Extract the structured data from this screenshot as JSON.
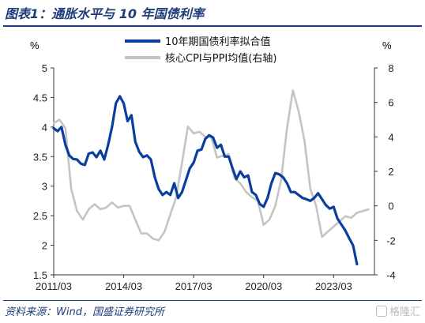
{
  "title": "图表1：通胀水平与 10 年国债利率",
  "source": "资料来源：Wind，国盛证券研究所",
  "watermark": "格隆汇",
  "colors": {
    "primary": "#0a3e9e",
    "secondary": "#c4c4c4",
    "title": "#1f3c7a"
  },
  "chart_data": {
    "type": "line",
    "y_left": {
      "label": "%",
      "range": [
        1.5,
        5
      ],
      "ticks": [
        "1.5",
        "2",
        "2.5",
        "3",
        "3.5",
        "4",
        "4.5",
        "5"
      ]
    },
    "y_right": {
      "label": "%",
      "range": [
        -4,
        8
      ],
      "ticks": [
        "-4",
        "-2",
        "0",
        "2",
        "4",
        "6",
        "8"
      ]
    },
    "x_ticks": [
      "2011/03",
      "2014/03",
      "2017/03",
      "2020/03",
      "2023/03"
    ],
    "legend_position": "top-center",
    "series": [
      {
        "name": "10年期国债利率拟合值",
        "axis": "left",
        "color": "#0a3e9e",
        "points": [
          [
            "2011-03",
            3.98
          ],
          [
            "2011-05",
            3.93
          ],
          [
            "2011-07",
            4.0
          ],
          [
            "2011-09",
            3.7
          ],
          [
            "2011-11",
            3.52
          ],
          [
            "2012-01",
            3.46
          ],
          [
            "2012-03",
            3.45
          ],
          [
            "2012-05",
            3.38
          ],
          [
            "2012-07",
            3.36
          ],
          [
            "2012-09",
            3.55
          ],
          [
            "2012-11",
            3.57
          ],
          [
            "2013-01",
            3.49
          ],
          [
            "2013-03",
            3.6
          ],
          [
            "2013-05",
            3.45
          ],
          [
            "2013-07",
            3.7
          ],
          [
            "2013-09",
            4.0
          ],
          [
            "2013-11",
            4.4
          ],
          [
            "2014-01",
            4.52
          ],
          [
            "2014-03",
            4.4
          ],
          [
            "2014-05",
            4.1
          ],
          [
            "2014-07",
            4.2
          ],
          [
            "2014-09",
            3.75
          ],
          [
            "2014-11",
            3.58
          ],
          [
            "2015-01",
            3.49
          ],
          [
            "2015-03",
            3.52
          ],
          [
            "2015-05",
            3.45
          ],
          [
            "2015-07",
            3.15
          ],
          [
            "2015-09",
            2.95
          ],
          [
            "2015-11",
            2.85
          ],
          [
            "2016-01",
            2.9
          ],
          [
            "2016-03",
            2.85
          ],
          [
            "2016-05",
            3.05
          ],
          [
            "2016-07",
            2.8
          ],
          [
            "2016-09",
            2.9
          ],
          [
            "2016-11",
            3.1
          ],
          [
            "2017-01",
            3.3
          ],
          [
            "2017-03",
            3.4
          ],
          [
            "2017-05",
            3.6
          ],
          [
            "2017-07",
            3.62
          ],
          [
            "2017-09",
            3.8
          ],
          [
            "2017-11",
            3.86
          ],
          [
            "2018-01",
            3.82
          ],
          [
            "2018-03",
            3.65
          ],
          [
            "2018-05",
            3.7
          ],
          [
            "2018-07",
            3.5
          ],
          [
            "2018-09",
            3.5
          ],
          [
            "2018-11",
            3.3
          ],
          [
            "2019-01",
            3.12
          ],
          [
            "2019-03",
            3.25
          ],
          [
            "2019-05",
            3.15
          ],
          [
            "2019-07",
            3.18
          ],
          [
            "2019-09",
            2.9
          ],
          [
            "2019-11",
            2.85
          ],
          [
            "2020-01",
            2.7
          ],
          [
            "2020-03",
            2.65
          ],
          [
            "2020-05",
            2.8
          ],
          [
            "2020-07",
            3.05
          ],
          [
            "2020-09",
            3.22
          ],
          [
            "2020-11",
            3.2
          ],
          [
            "2021-01",
            3.15
          ],
          [
            "2021-03",
            3.05
          ],
          [
            "2021-05",
            2.9
          ],
          [
            "2021-07",
            2.9
          ],
          [
            "2021-09",
            2.85
          ],
          [
            "2021-11",
            2.8
          ],
          [
            "2022-01",
            2.78
          ],
          [
            "2022-03",
            2.75
          ],
          [
            "2022-05",
            2.8
          ],
          [
            "2022-07",
            2.88
          ],
          [
            "2022-09",
            2.78
          ],
          [
            "2022-11",
            2.68
          ],
          [
            "2023-01",
            2.62
          ],
          [
            "2023-03",
            2.65
          ],
          [
            "2023-05",
            2.45
          ],
          [
            "2023-07",
            2.35
          ],
          [
            "2023-09",
            2.25
          ],
          [
            "2023-11",
            2.12
          ],
          [
            "2024-01",
            2.0
          ],
          [
            "2024-03",
            1.68
          ]
        ]
      },
      {
        "name": "核心CPI与PPI均值(右轴)",
        "axis": "right",
        "color": "#c4c4c4",
        "points": [
          [
            "2011-03",
            4.8
          ],
          [
            "2011-06",
            5.0
          ],
          [
            "2011-09",
            4.5
          ],
          [
            "2011-12",
            1.0
          ],
          [
            "2012-03",
            -0.3
          ],
          [
            "2012-06",
            -0.8
          ],
          [
            "2012-09",
            -0.2
          ],
          [
            "2012-12",
            0.1
          ],
          [
            "2013-03",
            -0.2
          ],
          [
            "2013-06",
            -0.1
          ],
          [
            "2013-09",
            0.2
          ],
          [
            "2013-12",
            -0.1
          ],
          [
            "2014-03",
            0.0
          ],
          [
            "2014-06",
            0.0
          ],
          [
            "2014-09",
            -0.8
          ],
          [
            "2014-12",
            -1.6
          ],
          [
            "2015-03",
            -1.6
          ],
          [
            "2015-06",
            -1.9
          ],
          [
            "2015-09",
            -2.0
          ],
          [
            "2015-12",
            -1.5
          ],
          [
            "2016-03",
            -0.5
          ],
          [
            "2016-06",
            0.5
          ],
          [
            "2016-09",
            2.5
          ],
          [
            "2016-12",
            4.6
          ],
          [
            "2017-03",
            4.2
          ],
          [
            "2017-06",
            4.3
          ],
          [
            "2017-09",
            4.0
          ],
          [
            "2017-12",
            4.0
          ],
          [
            "2018-03",
            2.8
          ],
          [
            "2018-06",
            2.9
          ],
          [
            "2018-09",
            3.0
          ],
          [
            "2018-12",
            1.6
          ],
          [
            "2019-03",
            1.3
          ],
          [
            "2019-06",
            0.8
          ],
          [
            "2019-09",
            0.5
          ],
          [
            "2019-12",
            0.3
          ],
          [
            "2020-03",
            -1.1
          ],
          [
            "2020-06",
            -0.8
          ],
          [
            "2020-09",
            0.0
          ],
          [
            "2020-12",
            1.5
          ],
          [
            "2021-03",
            4.5
          ],
          [
            "2021-06",
            6.7
          ],
          [
            "2021-09",
            5.5
          ],
          [
            "2021-12",
            3.8
          ],
          [
            "2022-03",
            1.0
          ],
          [
            "2022-06",
            0.0
          ],
          [
            "2022-09",
            -1.8
          ],
          [
            "2022-12",
            -1.5
          ],
          [
            "2023-03",
            -1.2
          ],
          [
            "2023-06",
            -0.9
          ],
          [
            "2023-09",
            -0.6
          ],
          [
            "2023-12",
            -0.7
          ],
          [
            "2024-03",
            -0.4
          ],
          [
            "2024-06",
            -0.3
          ],
          [
            "2024-09",
            -0.2
          ]
        ]
      }
    ]
  }
}
